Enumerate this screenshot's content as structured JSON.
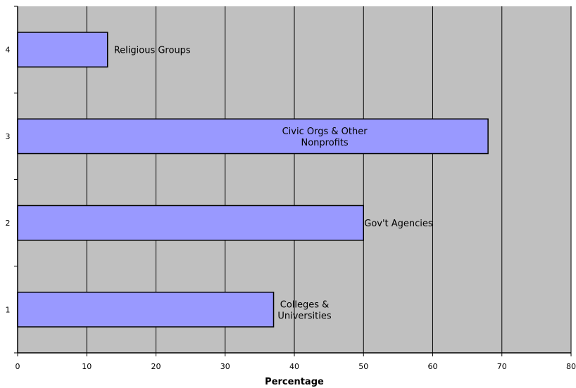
{
  "chart_data": {
    "type": "bar",
    "orientation": "horizontal",
    "categories": [
      "1",
      "2",
      "3",
      "4"
    ],
    "series": [
      {
        "values": [
          37,
          50,
          68,
          13
        ],
        "color": "#9999ff"
      }
    ],
    "data_labels": [
      [
        "Colleges &",
        "Universities"
      ],
      [
        "Gov't Agencies"
      ],
      [
        "Civic Orgs & Other",
        "Nonprofits"
      ],
      [
        "Religious Groups"
      ]
    ],
    "x_ticks": [
      "0",
      "10",
      "20",
      "30",
      "40",
      "50",
      "60",
      "70",
      "80"
    ],
    "xlabel": "Percentage",
    "ylabel": "",
    "xlim": [
      0,
      80
    ],
    "grid": "vertical",
    "legend": "none",
    "colors": {
      "plot_background": "#c0c0c0",
      "bar_fill": "#9999ff",
      "bar_stroke": "#000000",
      "grid": "#000000"
    }
  }
}
